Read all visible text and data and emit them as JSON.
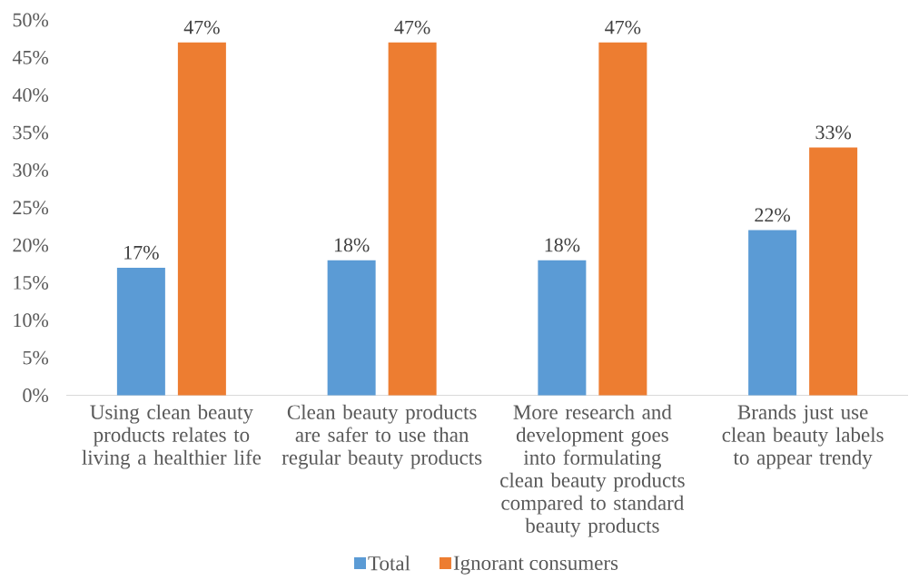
{
  "chart_data": {
    "type": "bar",
    "categories": [
      "Using clean beauty products relates to living a healthier life",
      "Clean beauty products are safer to use than regular beauty products",
      "More research and development goes into formulating clean beauty products compared to standard beauty products",
      "Brands just use clean beauty labels to appear trendy"
    ],
    "series": [
      {
        "name": "Total",
        "color": "#5b9bd5",
        "values": [
          17,
          18,
          18,
          22
        ],
        "value_labels": [
          "17%",
          "18%",
          "18%",
          "22%"
        ]
      },
      {
        "name": "Ignorant consumers",
        "color": "#ed7d31",
        "values": [
          47,
          47,
          47,
          33
        ],
        "value_labels": [
          "47%",
          "47%",
          "47%",
          "33%"
        ]
      }
    ],
    "ylim": [
      0,
      50
    ],
    "yticks": [
      {
        "value": 0,
        "label": "0%"
      },
      {
        "value": 5,
        "label": "5%"
      },
      {
        "value": 10,
        "label": "10%"
      },
      {
        "value": 15,
        "label": "15%"
      },
      {
        "value": 20,
        "label": "20%"
      },
      {
        "value": 25,
        "label": "25%"
      },
      {
        "value": 30,
        "label": "30%"
      },
      {
        "value": 35,
        "label": "35%"
      },
      {
        "value": 40,
        "label": "40%"
      },
      {
        "value": 45,
        "label": "45%"
      },
      {
        "value": 50,
        "label": "50%"
      }
    ],
    "grid": false,
    "legend": "bottom"
  }
}
